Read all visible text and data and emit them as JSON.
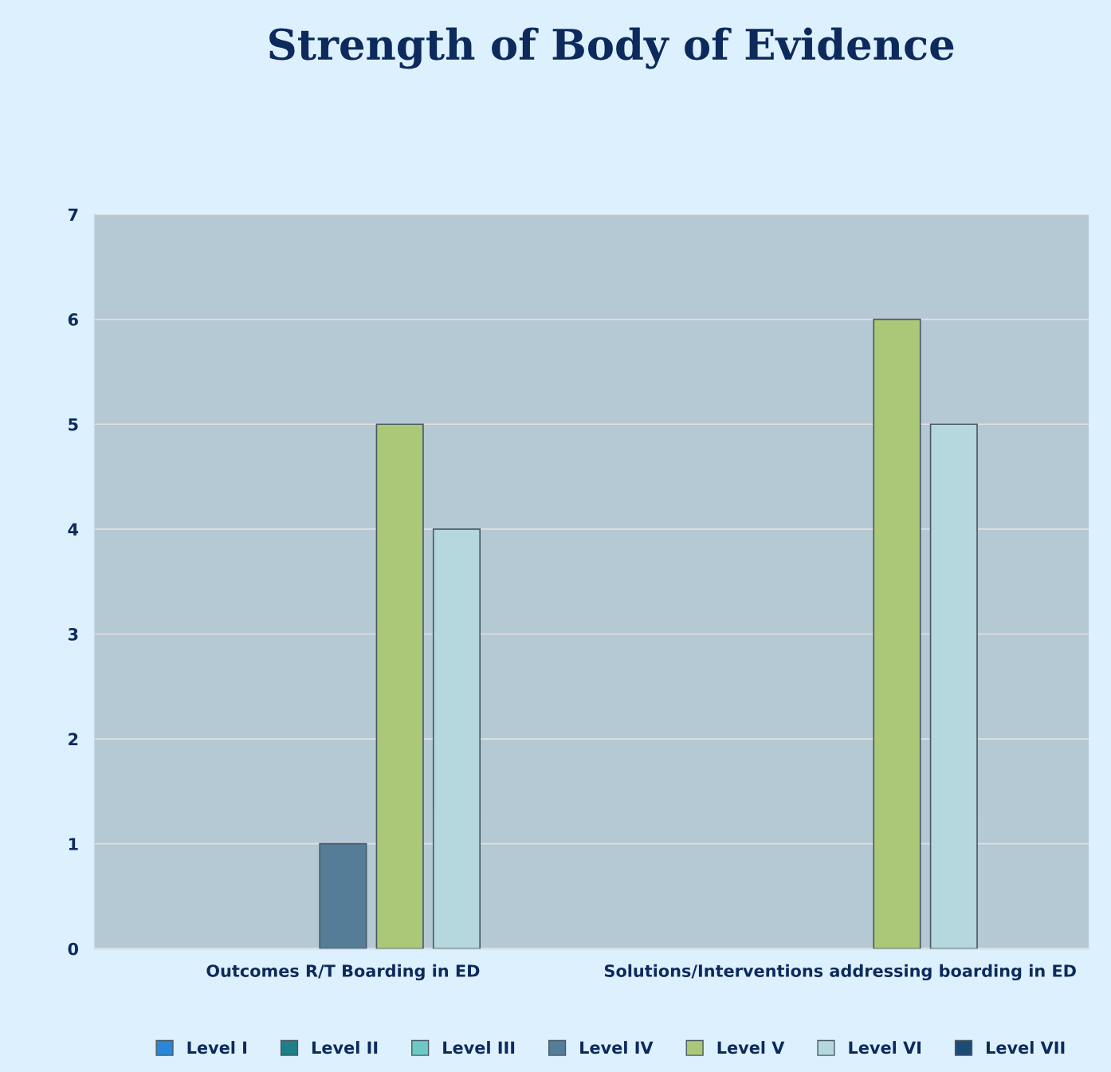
{
  "chart_data": {
    "type": "bar",
    "title": "Strength of Body of Evidence",
    "categories": [
      "Outcomes R/T Boarding in ED",
      "Solutions/Interventions addressing boarding in ED"
    ],
    "series": [
      {
        "name": "Level I",
        "color": "#2a86d6",
        "values": [
          0,
          0
        ]
      },
      {
        "name": "Level II",
        "color": "#1f7f86",
        "values": [
          0,
          0
        ]
      },
      {
        "name": "Level III",
        "color": "#6cc9c6",
        "values": [
          0,
          0
        ]
      },
      {
        "name": "Level IV",
        "color": "#557d97",
        "values": [
          1,
          0
        ]
      },
      {
        "name": "Level V",
        "color": "#aac878",
        "values": [
          5,
          6
        ]
      },
      {
        "name": "Level VI",
        "color": "#b5d7de",
        "values": [
          4,
          5
        ]
      },
      {
        "name": "Level VII",
        "color": "#1e4b75",
        "values": [
          0,
          0
        ]
      }
    ],
    "ylim": [
      0,
      7
    ],
    "yticks": [
      0,
      1,
      2,
      3,
      4,
      5,
      6,
      7
    ],
    "grid": "y",
    "legend": "bottom"
  }
}
